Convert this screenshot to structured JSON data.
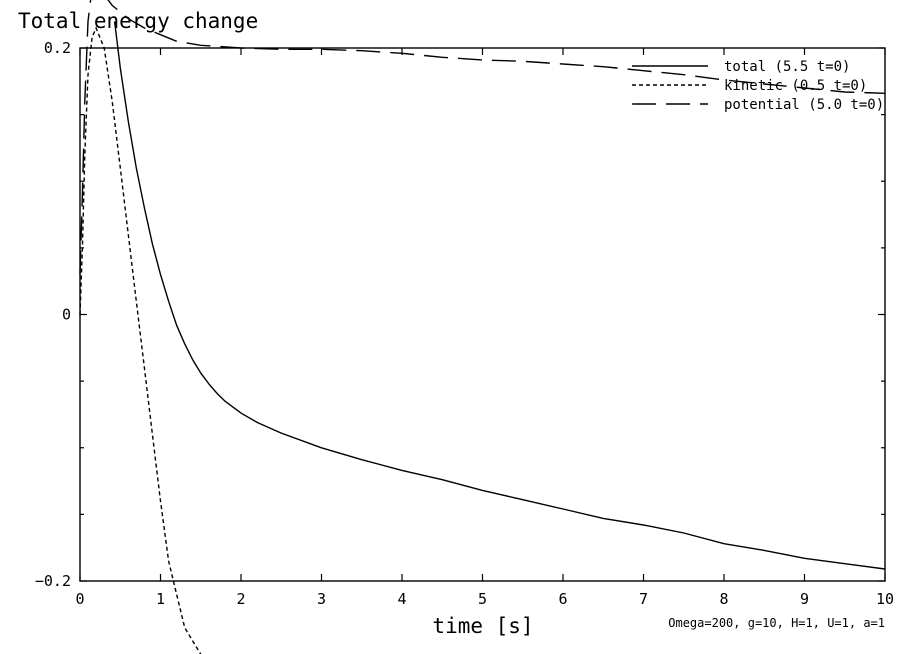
{
  "chart_data": {
    "type": "line",
    "title": "Total energy change",
    "xlabel": "time [s]",
    "ylabel": "",
    "xlim": [
      0,
      10
    ],
    "ylim": [
      -0.2,
      0.2
    ],
    "xticks": [
      0,
      1,
      2,
      3,
      4,
      5,
      6,
      7,
      8,
      9,
      10
    ],
    "xtick_labels": [
      "0",
      "1",
      "2",
      "3",
      "4",
      "5",
      "6",
      "7",
      "8",
      "9",
      "10"
    ],
    "yticks": [
      -0.2,
      0,
      0.2
    ],
    "ytick_labels": [
      "−0.2",
      "0",
      "0.2"
    ],
    "grid": false,
    "legend_position": "top-right",
    "annotation": "Omega=200, g=10, H=1, U=1, a=1",
    "series": [
      {
        "name": "total (5.5 t=0)",
        "style": "solid",
        "x": [
          0.43,
          0.5,
          0.6,
          0.7,
          0.8,
          0.9,
          1.0,
          1.1,
          1.2,
          1.3,
          1.4,
          1.5,
          1.6,
          1.7,
          1.8,
          2.0,
          2.2,
          2.5,
          3.0,
          3.5,
          4.0,
          4.5,
          5.0,
          5.5,
          6.0,
          6.5,
          7.0,
          7.5,
          8.0,
          8.5,
          9.0,
          9.5,
          10.0
        ],
        "y": [
          0.22,
          0.185,
          0.145,
          0.11,
          0.08,
          0.053,
          0.03,
          0.01,
          -0.008,
          -0.022,
          -0.034,
          -0.044,
          -0.052,
          -0.059,
          -0.065,
          -0.074,
          -0.081,
          -0.089,
          -0.1,
          -0.109,
          -0.117,
          -0.124,
          -0.132,
          -0.139,
          -0.146,
          -0.153,
          -0.158,
          -0.164,
          -0.172,
          -0.177,
          -0.183,
          -0.187,
          -0.191
        ]
      },
      {
        "name": "kinetic (0.5 t=0)",
        "style": "dotted",
        "x": [
          0.0,
          0.03,
          0.06,
          0.1,
          0.15,
          0.2,
          0.3,
          0.4,
          0.5,
          0.6,
          0.7,
          0.8,
          0.9,
          1.0,
          1.1,
          1.2,
          1.3,
          1.4,
          1.5,
          1.57
        ],
        "y": [
          0.0,
          0.05,
          0.12,
          0.18,
          0.208,
          0.215,
          0.2,
          0.16,
          0.11,
          0.06,
          0.01,
          -0.04,
          -0.09,
          -0.14,
          -0.185,
          -0.21,
          -0.235,
          -0.245,
          -0.255,
          -0.262
        ]
      },
      {
        "name": "potential (5.0 t=0)",
        "style": "dashed",
        "x": [
          0.0,
          0.03,
          0.06,
          0.1,
          0.15,
          0.2,
          0.25,
          0.3,
          0.4,
          0.5,
          0.6,
          0.8,
          1.0,
          1.2,
          1.5,
          2.0,
          2.5,
          3.0,
          3.5,
          4.0,
          4.5,
          5.0,
          5.5,
          6.0,
          6.5,
          7.0,
          7.5,
          8.0,
          8.5,
          9.0,
          9.5,
          10.0
        ],
        "y": [
          0.03,
          0.09,
          0.16,
          0.22,
          0.245,
          0.25,
          0.245,
          0.24,
          0.232,
          0.227,
          0.222,
          0.215,
          0.21,
          0.205,
          0.202,
          0.2,
          0.199,
          0.199,
          0.198,
          0.196,
          0.193,
          0.191,
          0.19,
          0.188,
          0.186,
          0.183,
          0.18,
          0.176,
          0.173,
          0.17,
          0.167,
          0.166
        ]
      }
    ]
  }
}
